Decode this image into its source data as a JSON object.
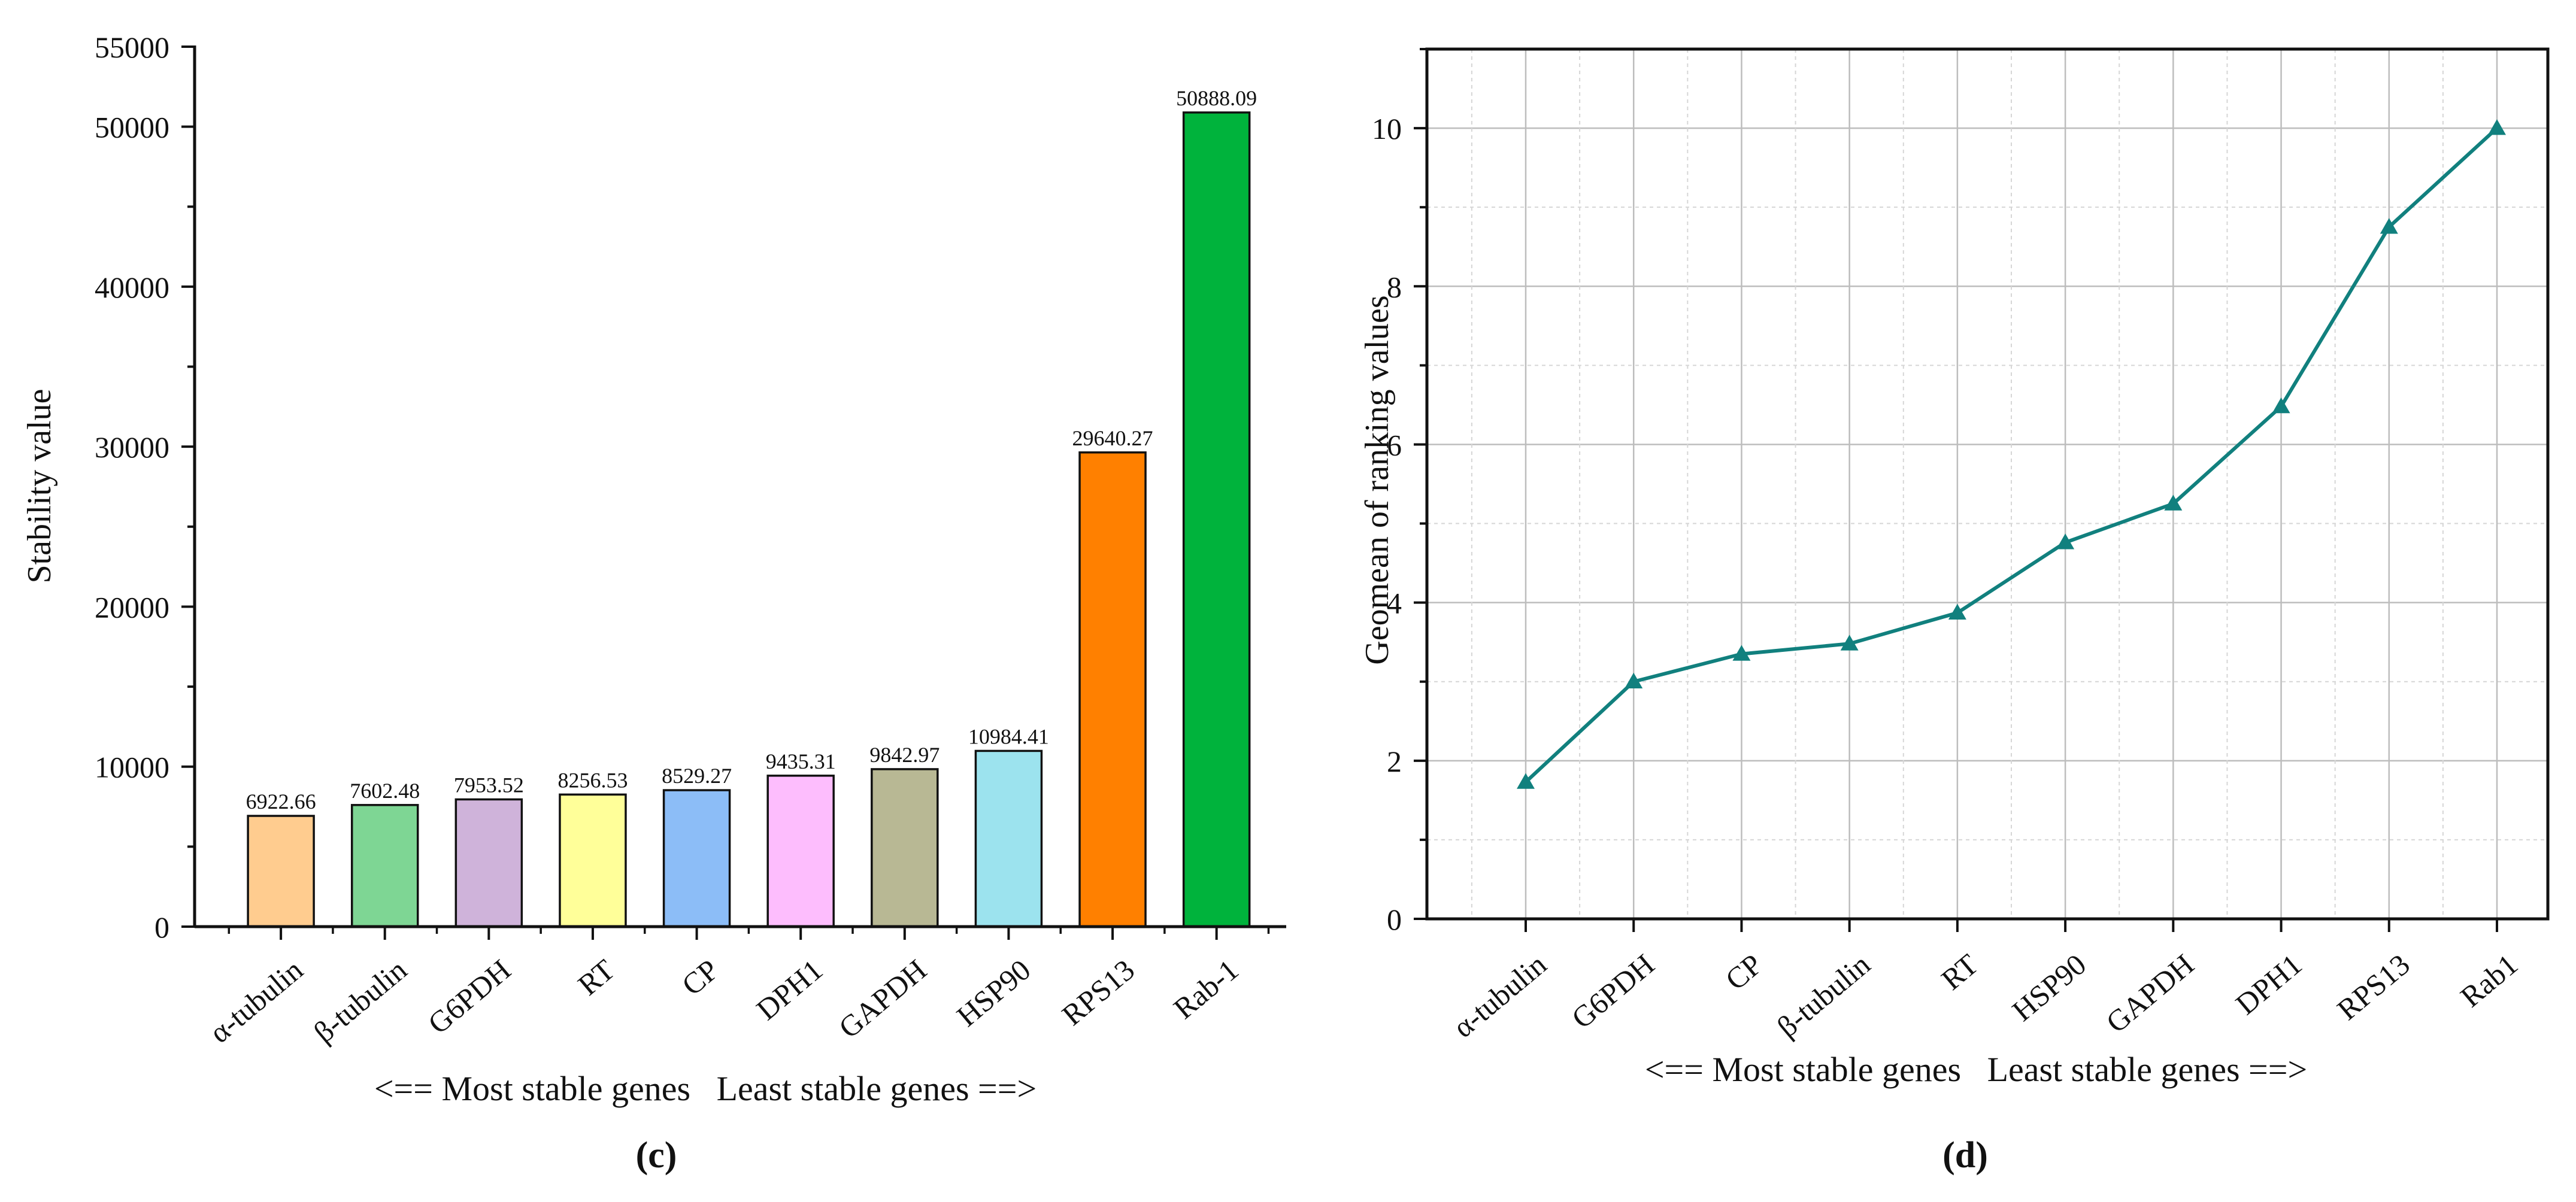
{
  "chart_data": [
    {
      "type": "bar",
      "panel_label": "(c)",
      "ylabel": "Stability value",
      "xlabel": "<== Most stable genes   Least stable genes ==>",
      "ylim": [
        0,
        55000
      ],
      "y_ticks": [
        0,
        10000,
        20000,
        30000,
        40000,
        50000,
        55000
      ],
      "y_tick_labels": [
        "0",
        "10000",
        "20000",
        "30000",
        "40000",
        "50000",
        "55000"
      ],
      "grid": false,
      "categories": [
        "α-tubulin",
        "β-tubulin",
        "G6PDH",
        "RT",
        "CP",
        "DPH1",
        "GAPDH",
        "HSP90",
        "RPS13",
        "Rab-1"
      ],
      "values": [
        6922.66,
        7602.48,
        7953.52,
        8256.53,
        8529.27,
        9435.31,
        9842.97,
        10984.41,
        29640.27,
        50888.09
      ],
      "value_labels": [
        "6922.66",
        "7602.48",
        "7953.52",
        "8256.53",
        "8529.27",
        "9435.31",
        "9842.97",
        "10984.41",
        "29640.27",
        "50888.09"
      ],
      "colors": [
        "#FFCC8F",
        "#7ED694",
        "#CFB3DA",
        "#FFFF99",
        "#8CBDF7",
        "#FDBDFD",
        "#B8B894",
        "#9CE3EE",
        "#FF8000",
        "#00B33C"
      ]
    },
    {
      "type": "line",
      "panel_label": "(d)",
      "ylabel": "Geomean of ranking values",
      "xlabel": "<== Most stable genes   Least stable genes ==>",
      "ylim": [
        0,
        11
      ],
      "y_ticks": [
        0,
        2,
        4,
        6,
        8,
        10
      ],
      "y_tick_labels": [
        "0",
        "2",
        "4",
        "6",
        "8",
        "10"
      ],
      "grid": true,
      "categories": [
        "α-tubulin",
        "G6PDH",
        "CP",
        "β-tubulin",
        "RT",
        "HSP90",
        "GAPDH",
        "DPH1",
        "RPS13",
        "Rab1"
      ],
      "series": [
        {
          "name": "Geomean of ranking values",
          "values": [
            1.73,
            3.0,
            3.35,
            3.48,
            3.87,
            4.76,
            5.25,
            6.48,
            8.75,
            10.0
          ],
          "color": "#11807E",
          "marker": "triangle"
        }
      ]
    }
  ]
}
